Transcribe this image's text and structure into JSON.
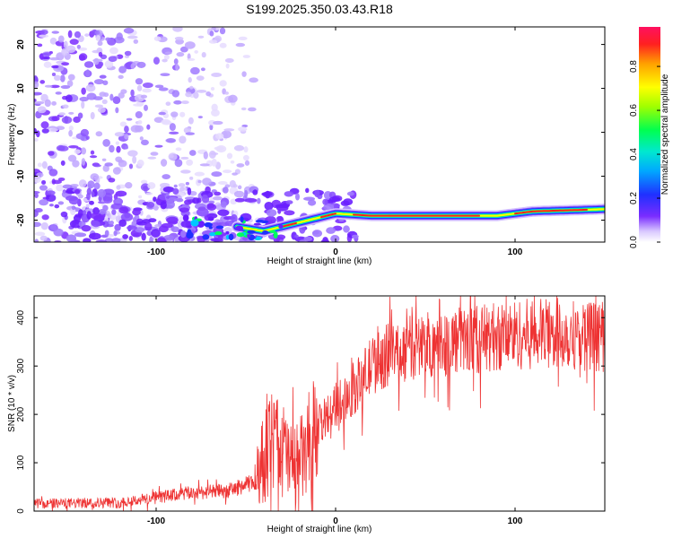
{
  "figure": {
    "title": "S199.2025.350.03.43.R18"
  },
  "chart_data": [
    {
      "type": "heatmap",
      "title": "S199.2025.350.03.43.R18",
      "xlabel": "Height of straight line (km)",
      "ylabel": "Frequency (Hz)",
      "xlim": [
        -168,
        150
      ],
      "ylim": [
        -25,
        24
      ],
      "x_ticks": [
        -100,
        0,
        100
      ],
      "y_ticks": [
        -20,
        -10,
        0,
        10,
        20
      ],
      "colorbar": {
        "label": "Normalized spectral amplitude",
        "range": [
          0,
          0.98
        ],
        "ticks": [
          0.0,
          0.2,
          0.4,
          0.6,
          0.8
        ],
        "colormap": [
          "#ffffff",
          "#d9c8ff",
          "#6a1fff",
          "#2030ff",
          "#00c8ff",
          "#00ff60",
          "#ffff00",
          "#ffa000",
          "#ff2020",
          "#ff1060"
        ]
      },
      "ridge": {
        "description": "narrow band of high normalized amplitude",
        "points": [
          {
            "x": -55,
            "y": -21.5
          },
          {
            "x": -40,
            "y": -22.5
          },
          {
            "x": -25,
            "y": -21.0
          },
          {
            "x": -10,
            "y": -19.5
          },
          {
            "x": 0,
            "y": -18.5
          },
          {
            "x": 20,
            "y": -19.0
          },
          {
            "x": 60,
            "y": -19.0
          },
          {
            "x": 90,
            "y": -19.0
          },
          {
            "x": 110,
            "y": -18.0
          },
          {
            "x": 150,
            "y": -17.5
          }
        ]
      },
      "grid": false
    },
    {
      "type": "line",
      "title": "",
      "xlabel": "Height of straight line (km)",
      "ylabel": "SNR (10 * v/v)",
      "xlim": [
        -168,
        150
      ],
      "ylim": [
        0,
        445
      ],
      "x_ticks": [
        -100,
        0,
        100
      ],
      "y_ticks": [
        0,
        100,
        200,
        300,
        400
      ],
      "series": [
        {
          "color": "#ee3333",
          "trend": [
            {
              "x": -168,
              "y": 15
            },
            {
              "x": -120,
              "y": 18
            },
            {
              "x": -100,
              "y": 28
            },
            {
              "x": -80,
              "y": 38
            },
            {
              "x": -60,
              "y": 42
            },
            {
              "x": -45,
              "y": 60
            },
            {
              "x": -38,
              "y": 130
            },
            {
              "x": -32,
              "y": 140
            },
            {
              "x": -25,
              "y": 100
            },
            {
              "x": -18,
              "y": 110
            },
            {
              "x": -10,
              "y": 175
            },
            {
              "x": 0,
              "y": 220
            },
            {
              "x": 10,
              "y": 250
            },
            {
              "x": 20,
              "y": 300
            },
            {
              "x": 30,
              "y": 325
            },
            {
              "x": 50,
              "y": 345
            },
            {
              "x": 75,
              "y": 355
            },
            {
              "x": 100,
              "y": 365
            },
            {
              "x": 125,
              "y": 368
            },
            {
              "x": 150,
              "y": 360
            }
          ]
        }
      ],
      "grid": false
    }
  ]
}
